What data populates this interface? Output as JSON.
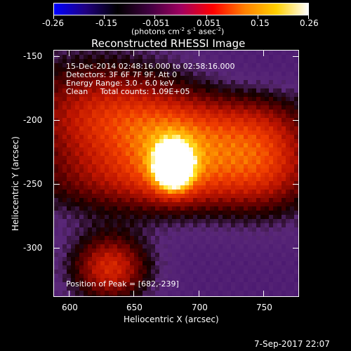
{
  "colorbar": {
    "tick_labels": [
      "-0.26",
      "-0.15",
      "-0.051",
      "0.051",
      "0.15",
      "0.26"
    ],
    "units_label_main": "(photons cm",
    "units_label_exp1": "-2",
    "units_label_mid": " s",
    "units_label_exp2": "-1",
    "units_label_mid2": " asec",
    "units_label_exp3": "-2",
    "units_label_end": ")",
    "gradient_colors": [
      "#0000ff",
      "#200080",
      "#000000",
      "#400040",
      "#a00060",
      "#ff0000",
      "#ff8000",
      "#ffd000",
      "#ffffff"
    ]
  },
  "plot": {
    "title": "Reconstructed RHESSI Image",
    "xlabel": "Heliocentric X (arcsec)",
    "ylabel": "Heliocentric Y (arcsec)",
    "x_ticks": [
      "600",
      "650",
      "700",
      "750"
    ],
    "y_ticks": [
      "-150",
      "-200",
      "-250",
      "-300"
    ]
  },
  "annotations": {
    "time_range": "15-Dec-2014 02:48:16.000 to 02:58:16.000",
    "detectors": "Detectors: 3F 6F 7F 9F, Att 0",
    "energy_range": "Energy Range: 3.0 - 6.0 keV",
    "clean_counts": "Clean     Total counts: 1.09E+05",
    "peak_position": "Position of Peak = [682,-239]"
  },
  "footer": {
    "date": "7-Sep-2017 22:07"
  },
  "chart_data": {
    "type": "heatmap",
    "title": "Reconstructed RHESSI Image",
    "xlabel": "Heliocentric X (arcsec)",
    "ylabel": "Heliocentric Y (arcsec)",
    "xlim": [
      588,
      778
    ],
    "ylim": [
      -338,
      -145
    ],
    "zlim": [
      -0.26,
      0.26
    ],
    "x_ticks": [
      600,
      650,
      700,
      750
    ],
    "y_ticks": [
      -150,
      -200,
      -250,
      -300
    ],
    "colorbar_ticks": [
      -0.26,
      -0.15,
      -0.051,
      0.051,
      0.15,
      0.26
    ],
    "peak": [
      682,
      -239
    ]
  }
}
